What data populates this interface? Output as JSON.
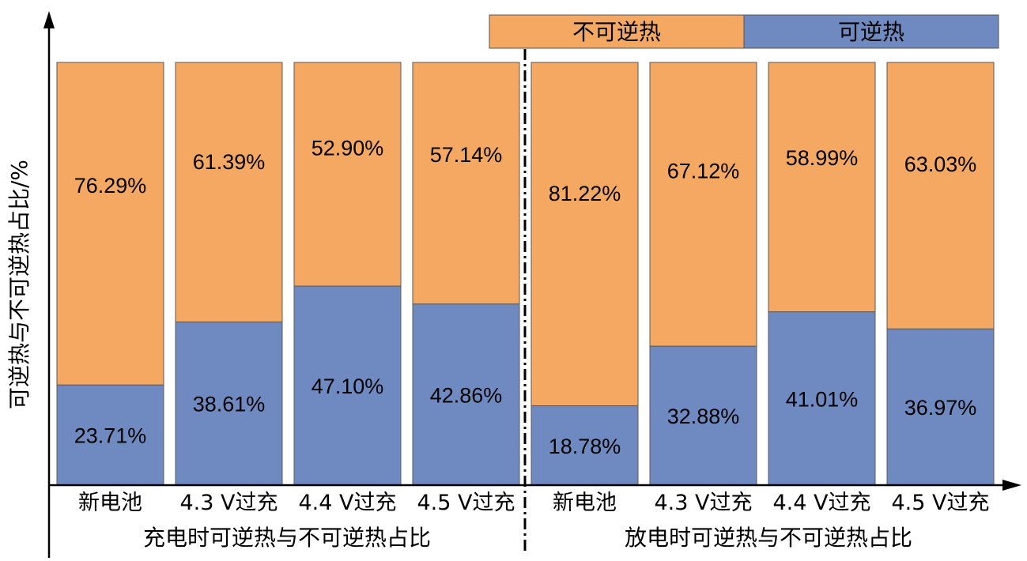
{
  "chart_data": {
    "type": "bar",
    "stacked": true,
    "ylabel": "可逆热与不可逆热占比/%",
    "ylim": [
      0,
      100
    ],
    "grid": false,
    "legend_position": "top-right",
    "colors": {
      "irreversible": "#F4A862",
      "reversible": "#6F8AC0"
    },
    "series": [
      {
        "name": "不可逆热",
        "key": "irreversible"
      },
      {
        "name": "可逆热",
        "key": "reversible"
      }
    ],
    "groups": [
      {
        "label": "充电时可逆热与不可逆热占比",
        "categories": [
          "新电池",
          "4.3 V过充",
          "4.4 V过充",
          "4.5 V过充"
        ],
        "irreversible": [
          76.29,
          61.39,
          52.9,
          57.14
        ],
        "reversible": [
          23.71,
          38.61,
          47.1,
          42.86
        ],
        "irreversible_labels": [
          "76.29%",
          "61.39%",
          "52.90%",
          "57.14%"
        ],
        "reversible_labels": [
          "23.71%",
          "38.61%",
          "47.10%",
          "42.86%"
        ]
      },
      {
        "label": "放电时可逆热与不可逆热占比",
        "categories": [
          "新电池",
          "4.3 V过充",
          "4.4 V过充",
          "4.5 V过充"
        ],
        "irreversible": [
          81.22,
          67.12,
          58.99,
          63.03
        ],
        "reversible": [
          18.78,
          32.88,
          41.01,
          36.97
        ],
        "irreversible_labels": [
          "81.22%",
          "67.12%",
          "58.99%",
          "63.03%"
        ],
        "reversible_labels": [
          "18.78%",
          "32.88%",
          "41.01%",
          "36.97%"
        ]
      }
    ]
  }
}
